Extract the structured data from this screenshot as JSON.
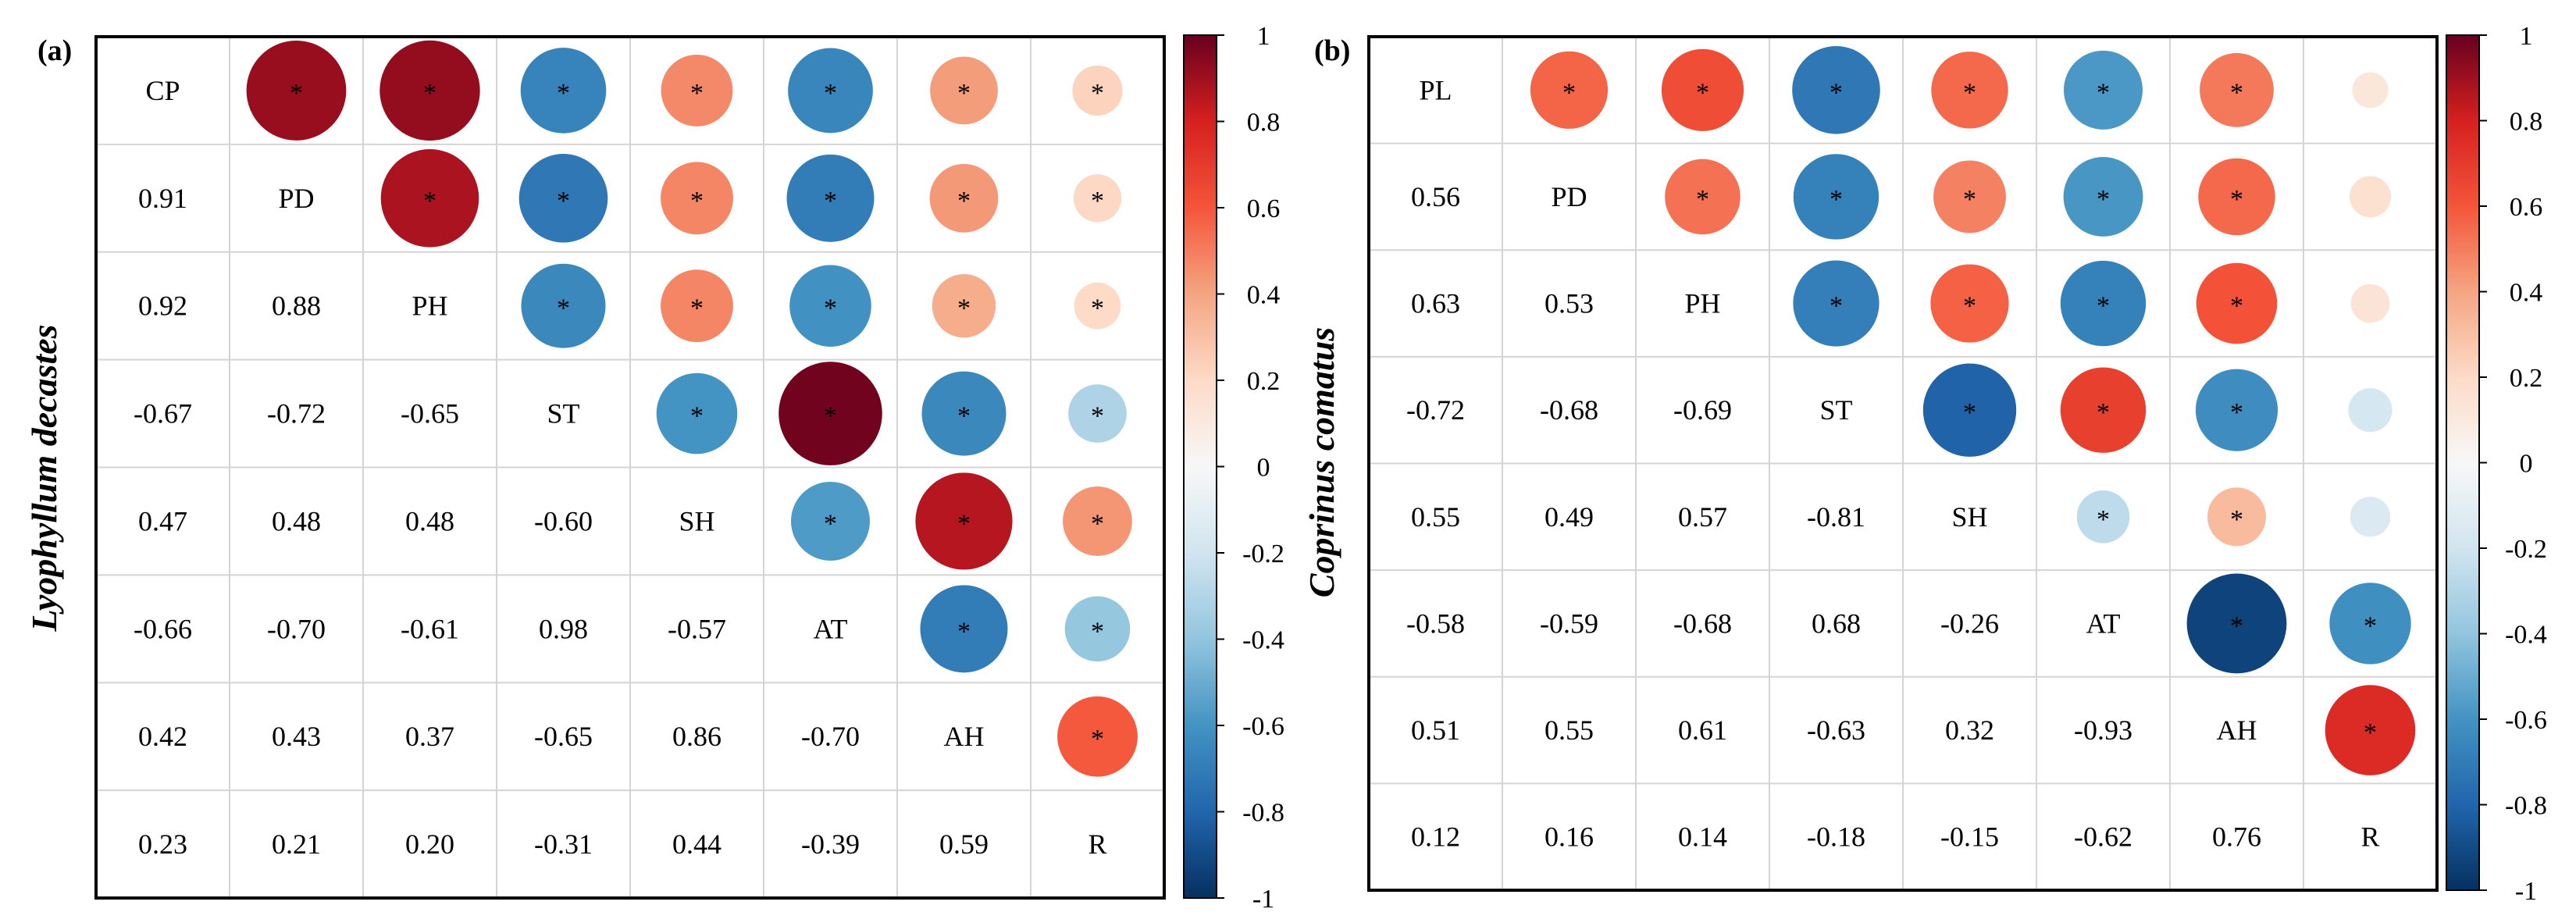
{
  "chart_data": [
    {
      "type": "heatmap",
      "panel_label": "(a)",
      "title": "",
      "ylabel": "Lyophyllum decastes",
      "xlabel": "",
      "variables": [
        "CP",
        "PD",
        "PH",
        "ST",
        "SH",
        "AT",
        "AH",
        "R"
      ],
      "lower_triangle_values": [
        [
          "0.91"
        ],
        [
          "0.92",
          "0.88"
        ],
        [
          "-0.67",
          "-0.72",
          "-0.65"
        ],
        [
          "0.47",
          "0.48",
          "0.48",
          "-0.60"
        ],
        [
          "-0.66",
          "-0.70",
          "-0.61",
          "0.98",
          "-0.57"
        ],
        [
          "0.42",
          "0.43",
          "0.37",
          "-0.65",
          "0.86",
          "-0.70"
        ],
        [
          "0.23",
          "0.21",
          "0.20",
          "-0.31",
          "0.44",
          "-0.39",
          "0.59"
        ]
      ],
      "significance_marker": "*",
      "significant_upper": [
        [
          true,
          true,
          true,
          true,
          true,
          true,
          true
        ],
        [
          true,
          true,
          true,
          true,
          true,
          true
        ],
        [
          true,
          true,
          true,
          true,
          true
        ],
        [
          true,
          true,
          true,
          true
        ],
        [
          true,
          true,
          true
        ],
        [
          true,
          true
        ],
        [
          true
        ]
      ],
      "colorbar": {
        "range": [
          -1,
          1
        ],
        "ticks": [
          "1",
          "0.8",
          "0.6",
          "0.4",
          "0.2",
          "0",
          "-0.2",
          "-0.4",
          "-0.6",
          "-0.8",
          "-1"
        ]
      }
    },
    {
      "type": "heatmap",
      "panel_label": "(b)",
      "title": "",
      "ylabel": "Coprinus comatus",
      "xlabel": "",
      "variables": [
        "PL",
        "PD",
        "PH",
        "ST",
        "SH",
        "AT",
        "AH",
        "R"
      ],
      "lower_triangle_values": [
        [
          "0.56"
        ],
        [
          "0.63",
          "0.53"
        ],
        [
          "-0.72",
          "-0.68",
          "-0.69"
        ],
        [
          "0.55",
          "0.49",
          "0.57",
          "-0.81"
        ],
        [
          "-0.58",
          "-0.59",
          "-0.68",
          "0.68",
          "-0.26"
        ],
        [
          "0.51",
          "0.55",
          "0.61",
          "-0.63",
          "0.32",
          "-0.93"
        ],
        [
          "0.12",
          "0.16",
          "0.14",
          "-0.18",
          "-0.15",
          "-0.62",
          "0.76"
        ]
      ],
      "significance_marker": "*",
      "significant_upper": [
        [
          true,
          true,
          true,
          true,
          true,
          true,
          false
        ],
        [
          true,
          true,
          true,
          true,
          true,
          false
        ],
        [
          true,
          true,
          true,
          true,
          false
        ],
        [
          true,
          true,
          true,
          false
        ],
        [
          true,
          true,
          false
        ],
        [
          true,
          true
        ],
        [
          true
        ]
      ],
      "colorbar": {
        "range": [
          -1,
          1
        ],
        "ticks": [
          "1",
          "0.8",
          "0.6",
          "0.4",
          "0.2",
          "0",
          "-0.2",
          "-0.4",
          "-0.6",
          "-0.8",
          "-1"
        ]
      }
    }
  ],
  "colors": {
    "scale": [
      "#053061",
      "#2166ac",
      "#4393c3",
      "#92c5de",
      "#d1e5f0",
      "#f7f7f7",
      "#fddbc7",
      "#f4a582",
      "#f4553a",
      "#d6201f",
      "#67001f"
    ],
    "grid": "#d4d4d4",
    "frame": "#000000",
    "text": "#000000"
  }
}
